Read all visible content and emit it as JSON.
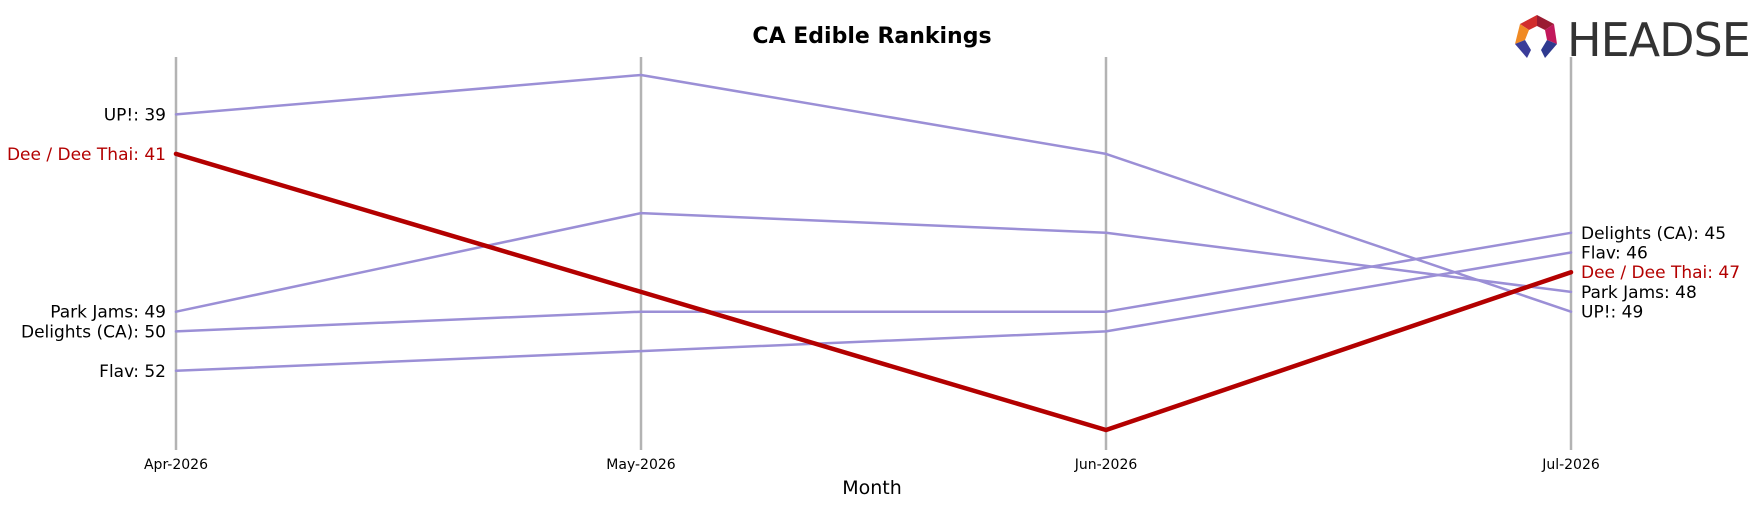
{
  "chart_data": {
    "type": "line",
    "title": "CA Edible Rankings",
    "xlabel": "Month",
    "ylabel": "",
    "x": [
      "Apr-2026",
      "May-2026",
      "Jun-2026",
      "Jul-2026"
    ],
    "y_axis": "rank",
    "y_inverted": true,
    "ylim": [
      37,
      56
    ],
    "grid": "vertical lines at each month",
    "series": [
      {
        "name": "UP!",
        "values": [
          39,
          37,
          41,
          49
        ],
        "color": "#9b8fd6",
        "highlight": false
      },
      {
        "name": "Park Jams",
        "values": [
          49,
          44,
          45,
          48
        ],
        "color": "#9b8fd6",
        "highlight": false
      },
      {
        "name": "Delights (CA)",
        "values": [
          50,
          49,
          49,
          45
        ],
        "color": "#9b8fd6",
        "highlight": false
      },
      {
        "name": "Flav",
        "values": [
          52,
          51,
          50,
          46
        ],
        "color": "#9b8fd6",
        "highlight": false
      },
      {
        "name": "Dee / Dee Thai",
        "values": [
          41,
          48,
          55,
          47
        ],
        "color": "#b30000",
        "highlight": true
      }
    ]
  },
  "logo": {
    "text": "HEADSET",
    "icon": "headset-hexagon-logo-icon"
  },
  "colors": {
    "series": "#9b8fd6",
    "highlight": "#b30000",
    "gridline": "#b3b3b3"
  }
}
